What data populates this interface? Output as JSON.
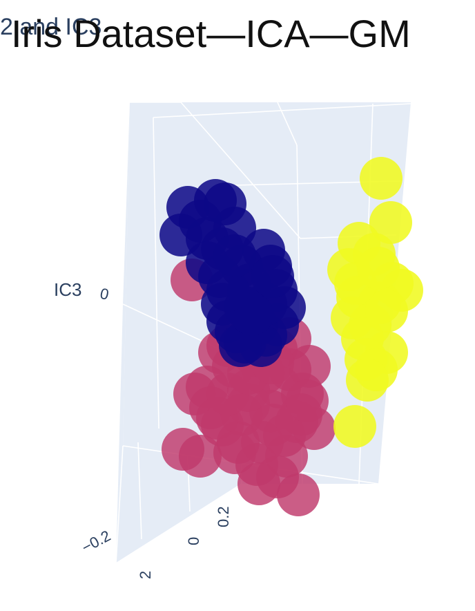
{
  "figure": {
    "title": "Iris Dataset—ICA—GM",
    "subtitle": "2 and IC3"
  },
  "chart_data": {
    "type": "scatter",
    "projection": "3d",
    "title": "Iris Dataset—ICA—GM",
    "axes": {
      "z_title": "IC3",
      "z_ticks": [
        "0"
      ],
      "x_ticks": [
        "−0.2",
        "2"
      ],
      "y_ticks": [
        "0",
        "0.2"
      ]
    },
    "grid": true,
    "series": [
      {
        "color": "#c0396b",
        "opacity": 0.82,
        "points": [
          [
            278,
            405
          ],
          [
            318,
            510
          ],
          [
            300,
            560
          ],
          [
            282,
            570
          ],
          [
            338,
            530
          ],
          [
            382,
            540
          ],
          [
            420,
            535
          ],
          [
            448,
            530
          ],
          [
            360,
            565
          ],
          [
            405,
            560
          ],
          [
            438,
            570
          ],
          [
            315,
            605
          ],
          [
            350,
            600
          ],
          [
            392,
            595
          ],
          [
            436,
            600
          ],
          [
            322,
            615
          ],
          [
            265,
            650
          ],
          [
            290,
            660
          ],
          [
            345,
            640
          ],
          [
            380,
            640
          ],
          [
            412,
            630
          ],
          [
            372,
            672
          ],
          [
            402,
            690
          ],
          [
            432,
            716
          ],
          [
            330,
            500
          ],
          [
            370,
            515
          ],
          [
            400,
            505
          ],
          [
            420,
            490
          ],
          [
            360,
            585
          ],
          [
            395,
            615
          ],
          [
            430,
            610
          ],
          [
            340,
            655
          ],
          [
            375,
            700
          ],
          [
            305,
            590
          ],
          [
            415,
            660
          ],
          [
            455,
            620
          ],
          [
            330,
            570
          ],
          [
            360,
            540
          ],
          [
            395,
            525
          ],
          [
            445,
            580
          ]
        ]
      },
      {
        "color": "#0d0887",
        "opacity": 0.86,
        "points": [
          [
            272,
            300
          ],
          [
            312,
            290
          ],
          [
            326,
            295
          ],
          [
            262,
            340
          ],
          [
            300,
            345
          ],
          [
            322,
            360
          ],
          [
            382,
            362
          ],
          [
            318,
            400
          ],
          [
            350,
            385
          ],
          [
            392,
            385
          ],
          [
            362,
            412
          ],
          [
            400,
            420
          ],
          [
            322,
            440
          ],
          [
            355,
            445
          ],
          [
            412,
            445
          ],
          [
            330,
            465
          ],
          [
            372,
            470
          ],
          [
            402,
            470
          ],
          [
            342,
            480
          ],
          [
            385,
            485
          ],
          [
            355,
            495
          ],
          [
            378,
            500
          ],
          [
            290,
            320
          ],
          [
            340,
            330
          ],
          [
            360,
            420
          ],
          [
            385,
            440
          ],
          [
            348,
            500
          ],
          [
            365,
            455
          ],
          [
            330,
            420
          ],
          [
            300,
            380
          ],
          [
            395,
            400
          ],
          [
            340,
            370
          ]
        ]
      },
      {
        "color": "#f0f921",
        "opacity": 0.88,
        "points": [
          [
            552,
            258
          ],
          [
            566,
            322
          ],
          [
            520,
            352
          ],
          [
            542,
            368
          ],
          [
            505,
            390
          ],
          [
            568,
            410
          ],
          [
            518,
            430
          ],
          [
            582,
            420
          ],
          [
            550,
            438
          ],
          [
            510,
            460
          ],
          [
            536,
            470
          ],
          [
            525,
            490
          ],
          [
            560,
            510
          ],
          [
            530,
            520
          ],
          [
            545,
            535
          ],
          [
            532,
            550
          ],
          [
            514,
            617
          ],
          [
            560,
            450
          ],
          [
            515,
            410
          ],
          [
            548,
            388
          ]
        ]
      }
    ]
  }
}
